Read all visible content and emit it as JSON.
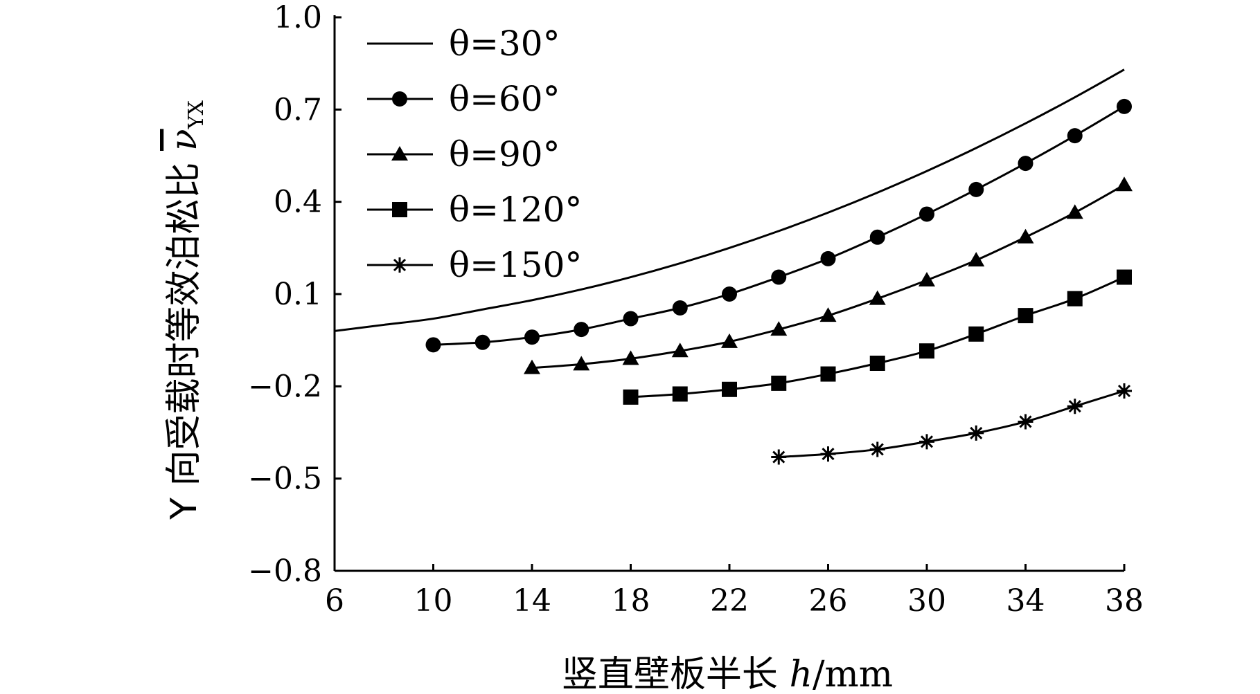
{
  "chart_data": {
    "type": "line",
    "xlabel_prefix": "竖直壁板半长 ",
    "xlabel_var": "h",
    "xlabel_unit": "/mm",
    "ylabel_text": "Y 向受载时等效泊松比 ",
    "ylabel_symbol": "ν",
    "ylabel_sub": "YX",
    "xlim": [
      6,
      38
    ],
    "ylim": [
      -0.8,
      1.0
    ],
    "x_ticks": [
      6,
      10,
      14,
      18,
      22,
      26,
      30,
      34,
      38
    ],
    "y_ticks": [
      1.0,
      0.7,
      0.4,
      0.1,
      -0.2,
      -0.5,
      -0.8
    ],
    "y_tick_labels": [
      "1.0",
      "0.7",
      "0.4",
      "0.1",
      "−0.2",
      "−0.5",
      "−0.8"
    ],
    "grid": false,
    "legend_position": "top-left",
    "series": [
      {
        "name": "θ=30°",
        "marker": "none",
        "x": [
          6,
          8,
          10,
          12,
          14,
          16,
          18,
          20,
          22,
          24,
          26,
          28,
          30,
          32,
          34,
          36,
          38
        ],
        "values": [
          -0.02,
          0.0,
          0.02,
          0.05,
          0.08,
          0.115,
          0.155,
          0.2,
          0.25,
          0.305,
          0.365,
          0.43,
          0.5,
          0.575,
          0.655,
          0.74,
          0.83
        ]
      },
      {
        "name": "θ=60°",
        "marker": "circle",
        "x": [
          10,
          12,
          14,
          16,
          18,
          20,
          22,
          24,
          26,
          28,
          30,
          32,
          34,
          36,
          38
        ],
        "values": [
          -0.065,
          -0.057,
          -0.04,
          -0.015,
          0.02,
          0.055,
          0.1,
          0.155,
          0.215,
          0.285,
          0.36,
          0.44,
          0.525,
          0.615,
          0.71
        ]
      },
      {
        "name": "θ=90°",
        "marker": "triangle",
        "x": [
          14,
          16,
          18,
          20,
          22,
          24,
          26,
          28,
          30,
          32,
          34,
          36,
          38
        ],
        "values": [
          -0.14,
          -0.128,
          -0.11,
          -0.085,
          -0.055,
          -0.015,
          0.03,
          0.085,
          0.145,
          0.21,
          0.285,
          0.365,
          0.455
        ]
      },
      {
        "name": "θ=120°",
        "marker": "square",
        "x": [
          18,
          20,
          22,
          24,
          26,
          28,
          30,
          32,
          34,
          36,
          38
        ],
        "values": [
          -0.235,
          -0.225,
          -0.21,
          -0.19,
          -0.16,
          -0.125,
          -0.085,
          -0.03,
          0.03,
          0.085,
          0.155
        ]
      },
      {
        "name": "θ=150°",
        "marker": "asterisk",
        "x": [
          24,
          26,
          28,
          30,
          32,
          34,
          36,
          38
        ],
        "values": [
          -0.43,
          -0.42,
          -0.405,
          -0.38,
          -0.352,
          -0.315,
          -0.265,
          -0.215
        ]
      }
    ]
  }
}
